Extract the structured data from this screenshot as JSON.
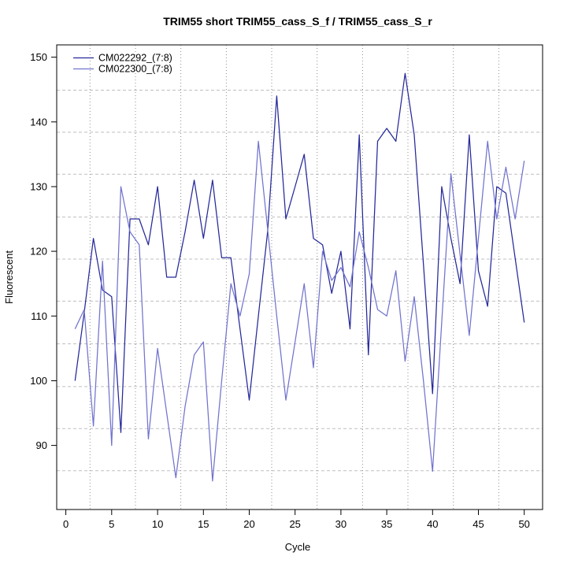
{
  "title": "TRIM55 short TRIM55_cass_S_f / TRIM55_cass_S_r",
  "chart_data": {
    "type": "line",
    "title": "TRIM55 short TRIM55_cass_S_f / TRIM55_cass_S_r",
    "xlabel": "Cycle",
    "ylabel": "Fluorescent",
    "x": [
      1,
      2,
      3,
      4,
      5,
      6,
      7,
      8,
      9,
      10,
      11,
      12,
      13,
      14,
      15,
      16,
      17,
      18,
      19,
      20,
      21,
      22,
      23,
      24,
      25,
      26,
      27,
      28,
      29,
      30,
      31,
      32,
      33,
      34,
      35,
      36,
      37,
      38,
      39,
      40,
      41,
      42,
      43,
      44,
      45,
      46,
      47,
      48,
      49,
      50
    ],
    "series": [
      {
        "name": "CM022292_(7:8)",
        "color": "#252899",
        "values": [
          100,
          110.5,
          122,
          114,
          113,
          92,
          125,
          125,
          121,
          130,
          116,
          116,
          123,
          131,
          122,
          131,
          119,
          119,
          108,
          97,
          110,
          123,
          144,
          125,
          130,
          135,
          122,
          121,
          113.5,
          120,
          108,
          138,
          104,
          137,
          139,
          137,
          147.5,
          138,
          118,
          98,
          130,
          122,
          115,
          138,
          117,
          111.5,
          130,
          129,
          119,
          109
        ]
      },
      {
        "name": "CM022300_(7:8)",
        "color": "#7173ce",
        "values": [
          108,
          111,
          93,
          118.5,
          90,
          130,
          123,
          121,
          91,
          105,
          95,
          85,
          96,
          104,
          106,
          84.5,
          100,
          115,
          110,
          116.5,
          137,
          123.5,
          110,
          97,
          106,
          115,
          102,
          120,
          115.5,
          117.5,
          114.5,
          123,
          117.5,
          111,
          110,
          117,
          103,
          113,
          100,
          86,
          109,
          132,
          119.5,
          107,
          122,
          137,
          125,
          133,
          125,
          134
        ]
      }
    ],
    "x_ticks": [
      0,
      5,
      10,
      15,
      20,
      25,
      30,
      35,
      40,
      45,
      50
    ],
    "y_ticks": [
      90,
      100,
      110,
      120,
      130,
      140,
      150
    ],
    "xlim": [
      -1.0,
      52.0
    ],
    "ylim": [
      80.1,
      151.9
    ],
    "grid": {
      "on": true,
      "h_values": [
        144.9,
        138.4,
        131.9,
        125.3,
        118.8,
        112.3,
        105.7,
        99.1,
        92.6,
        86.1
      ],
      "v_values": [
        2.63,
        7.59,
        12.54,
        17.5,
        22.45,
        27.41,
        32.36,
        37.31,
        42.27,
        47.22
      ]
    },
    "legend_position": "top-left"
  }
}
